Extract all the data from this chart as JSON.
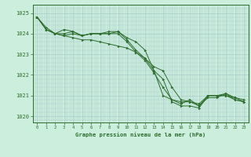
{
  "background_color": "#cceedd",
  "grid_color": "#aacccc",
  "line_color": "#2d6e2d",
  "marker_color": "#2d6e2d",
  "xlabel": "Graphe pression niveau de la mer (hPa)",
  "xlabel_color": "#2d6e2d",
  "ytick_color": "#2d6e2d",
  "xtick_color": "#2d6e2d",
  "ylim": [
    1019.7,
    1025.4
  ],
  "xlim": [
    -0.5,
    23.5
  ],
  "yticks": [
    1020,
    1021,
    1022,
    1023,
    1024,
    1025
  ],
  "xticks": [
    0,
    1,
    2,
    3,
    4,
    5,
    6,
    7,
    8,
    9,
    10,
    11,
    12,
    13,
    14,
    15,
    16,
    17,
    18,
    19,
    20,
    21,
    22,
    23
  ],
  "series": [
    [
      1024.8,
      1024.2,
      1024.0,
      1024.0,
      1024.1,
      1023.9,
      1024.0,
      1024.0,
      1024.0,
      1024.1,
      1023.7,
      1023.2,
      1022.8,
      1022.2,
      1021.0,
      1020.8,
      1020.7,
      1020.7,
      1020.6,
      1021.0,
      1021.0,
      1021.0,
      1020.8,
      1020.7
    ],
    [
      1024.8,
      1024.3,
      1024.0,
      1023.9,
      1023.8,
      1023.7,
      1023.7,
      1023.6,
      1023.5,
      1023.4,
      1023.3,
      1023.1,
      1022.8,
      1022.4,
      1022.2,
      1021.4,
      1020.8,
      1020.7,
      1020.5,
      1020.9,
      1020.9,
      1021.1,
      1020.9,
      1020.8
    ],
    [
      1024.8,
      1024.2,
      1024.0,
      1024.2,
      1024.1,
      1023.9,
      1024.0,
      1024.0,
      1024.1,
      1024.1,
      1023.8,
      1023.6,
      1023.2,
      1022.2,
      1021.8,
      1020.7,
      1020.5,
      1020.5,
      1020.4,
      1021.0,
      1021.0,
      1021.1,
      1020.8,
      1020.7
    ],
    [
      1024.8,
      1024.2,
      1024.0,
      1023.9,
      1024.0,
      1023.9,
      1024.0,
      1024.0,
      1024.0,
      1024.0,
      1023.6,
      1023.1,
      1022.7,
      1022.1,
      1021.4,
      1020.8,
      1020.6,
      1020.8,
      1020.5,
      1021.0,
      1021.0,
      1021.0,
      1020.9,
      1020.7
    ]
  ]
}
